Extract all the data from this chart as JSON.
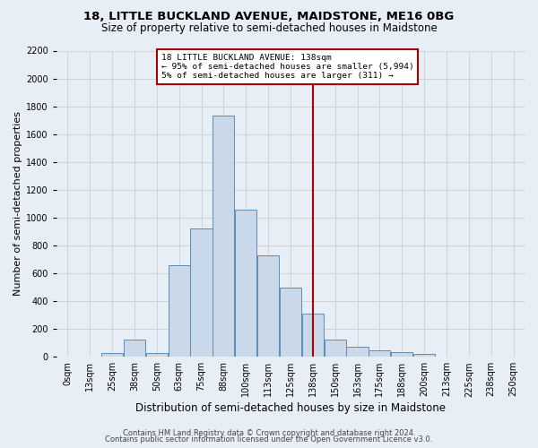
{
  "title1": "18, LITTLE BUCKLAND AVENUE, MAIDSTONE, ME16 0BG",
  "title2": "Size of property relative to semi-detached houses in Maidstone",
  "xlabel": "Distribution of semi-detached houses by size in Maidstone",
  "ylabel": "Number of semi-detached properties",
  "footer1": "Contains HM Land Registry data © Crown copyright and database right 2024.",
  "footer2": "Contains public sector information licensed under the Open Government Licence v3.0.",
  "bar_labels": [
    "0sqm",
    "13sqm",
    "25sqm",
    "38sqm",
    "50sqm",
    "63sqm",
    "75sqm",
    "88sqm",
    "100sqm",
    "113sqm",
    "125sqm",
    "138sqm",
    "150sqm",
    "163sqm",
    "175sqm",
    "188sqm",
    "200sqm",
    "213sqm",
    "225sqm",
    "238sqm",
    "250sqm"
  ],
  "bar_values": [
    0,
    0,
    25,
    125,
    25,
    660,
    925,
    1730,
    1055,
    730,
    500,
    310,
    125,
    70,
    48,
    35,
    20,
    0,
    0,
    0,
    0
  ],
  "bar_color": "#c9d9ea",
  "bar_edge_color": "#5b8db8",
  "grid_color": "#c8c8c8",
  "vline_x": 11,
  "vline_color": "#aa0000",
  "annotation_line1": "18 LITTLE BUCKLAND AVENUE: 138sqm",
  "annotation_line2": "← 95% of semi-detached houses are smaller (5,994)",
  "annotation_line3": "5% of semi-detached houses are larger (311) →",
  "annotation_box_color": "#ffffff",
  "annotation_box_edge": "#aa0000",
  "ylim": [
    0,
    2200
  ],
  "yticks": [
    0,
    200,
    400,
    600,
    800,
    1000,
    1200,
    1400,
    1600,
    1800,
    2000,
    2200
  ],
  "bg_color": "#e8eef5",
  "title1_fontsize": 9.5,
  "title2_fontsize": 8.5,
  "xlabel_fontsize": 8.5,
  "ylabel_fontsize": 8.0,
  "tick_fontsize": 7.0,
  "footer_fontsize": 6.0
}
